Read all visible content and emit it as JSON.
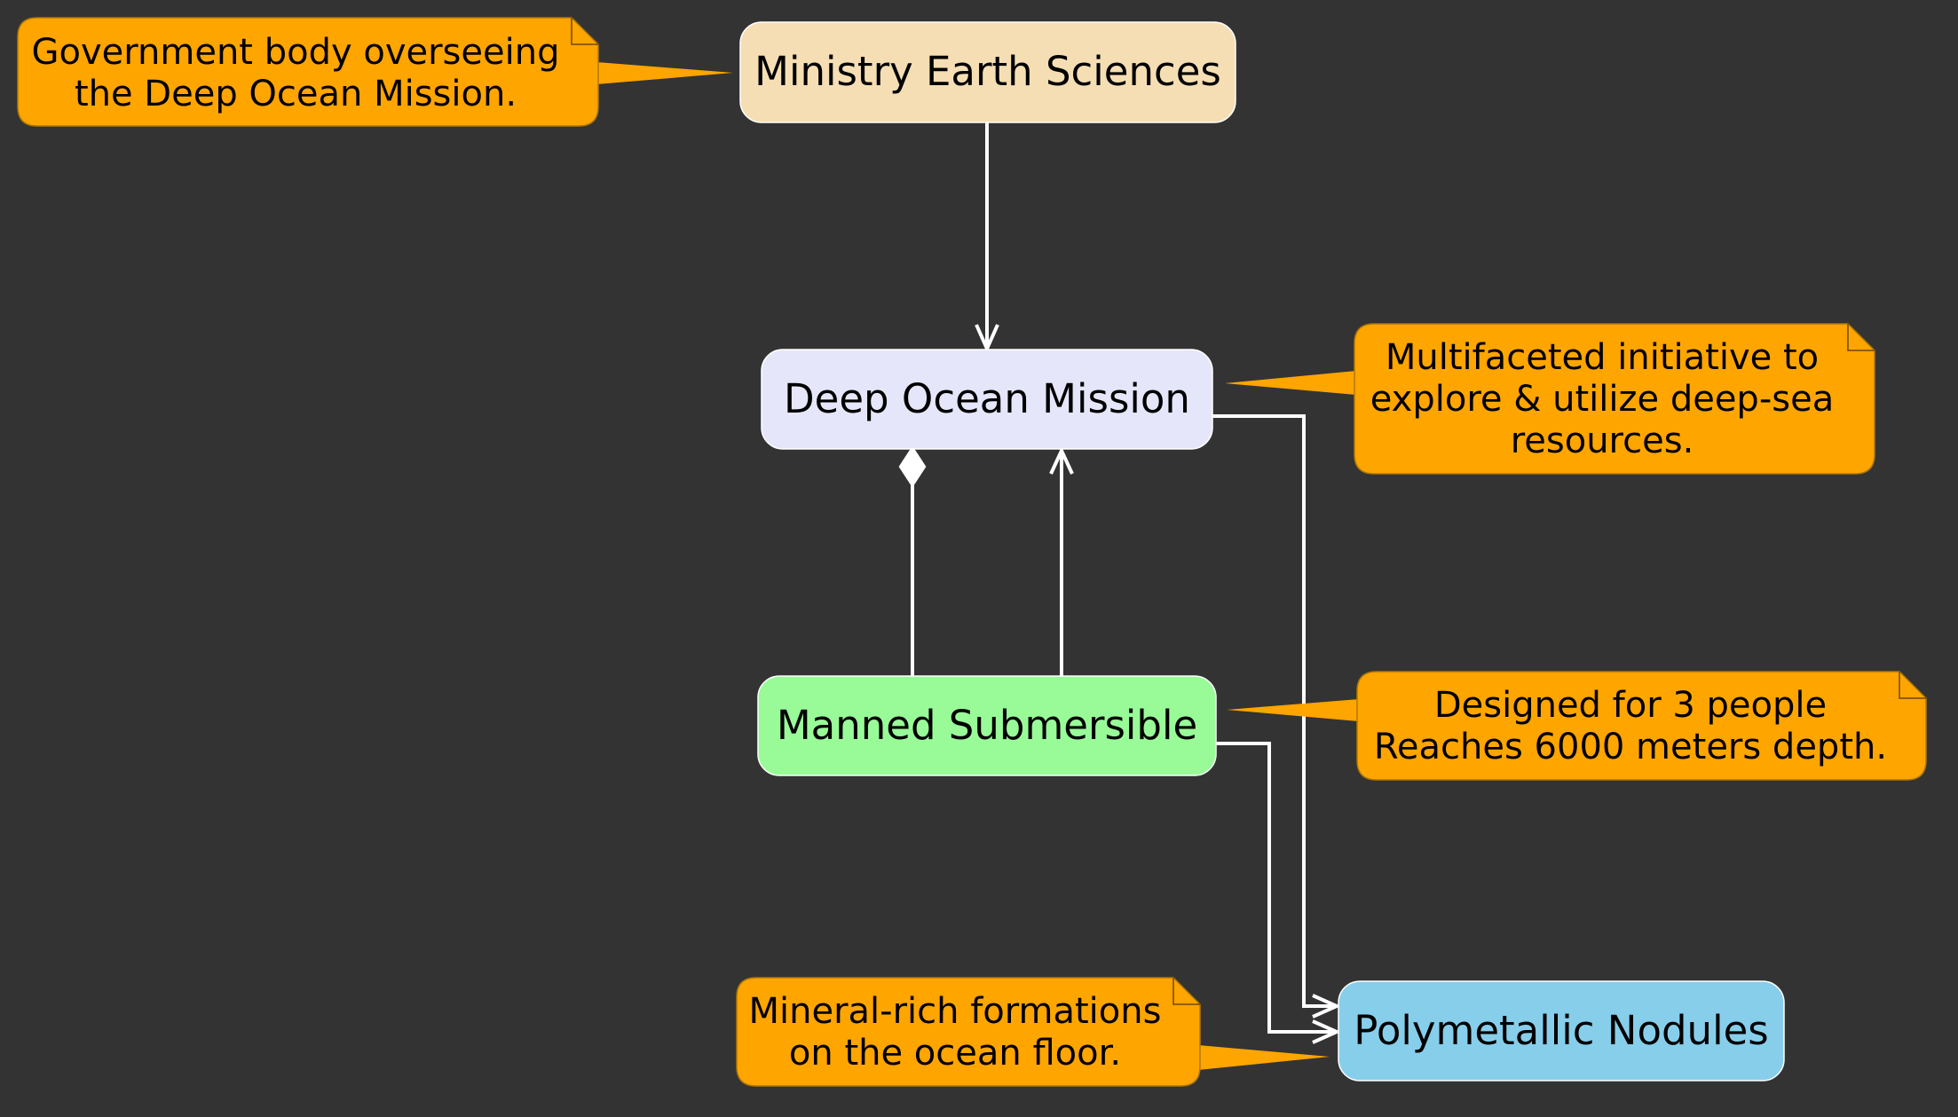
{
  "colors": {
    "background": "#333333",
    "edge": "#ffffff",
    "note_fill": "#ffa500",
    "note_stroke": "#b07800",
    "ministry": "#f5deb3",
    "mission": "#e6e6fa",
    "submersible": "#98fb98",
    "nodules": "#87ceeb"
  },
  "nodes": {
    "ministry": "Ministry Earth Sciences",
    "mission": "Deep Ocean Mission",
    "submersible": "Manned Submersible",
    "nodules": "Polymetallic Nodules"
  },
  "notes": {
    "ministry": [
      "Government body overseeing",
      "the Deep Ocean Mission."
    ],
    "mission": [
      "Multifaceted initiative to",
      "explore & utilize deep-sea",
      "resources."
    ],
    "submersible": [
      "Designed for 3 people",
      "Reaches 6000 meters depth."
    ],
    "nodules": [
      "Mineral-rich formations",
      "on the ocean floor."
    ]
  },
  "edges": [
    {
      "from": "Ministry Earth Sciences",
      "to": "Deep Ocean Mission",
      "type": "association"
    },
    {
      "from": "Manned Submersible",
      "to": "Deep Ocean Mission",
      "type": "composition"
    },
    {
      "from": "Manned Submersible",
      "to": "Deep Ocean Mission",
      "type": "association"
    },
    {
      "from": "Deep Ocean Mission",
      "to": "Polymetallic Nodules",
      "type": "association"
    },
    {
      "from": "Manned Submersible",
      "to": "Polymetallic Nodules",
      "type": "association"
    }
  ]
}
